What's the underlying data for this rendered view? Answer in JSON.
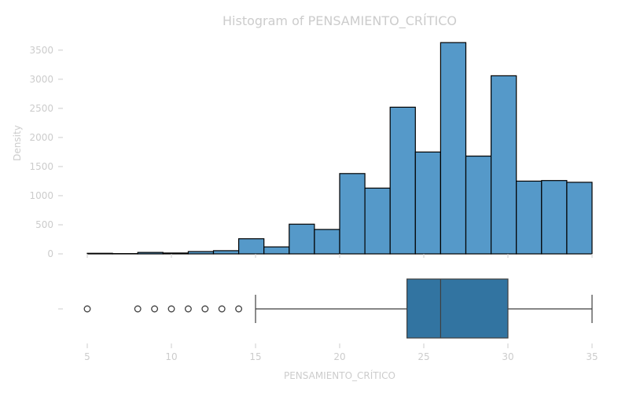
{
  "chart_data": {
    "type": "histogram+boxplot",
    "title": "Histogram of PENSAMIENTO_CRÍTICO",
    "xlabel": "PENSAMIENTO_CRÍTICO",
    "ylabel": "Density",
    "xlim": [
      4.5,
      35.5
    ],
    "ylim": [
      0,
      3700
    ],
    "xticks": [
      5,
      10,
      15,
      20,
      25,
      30,
      35
    ],
    "yticks": [
      0,
      500,
      1000,
      1500,
      2000,
      2500,
      3000,
      3500
    ],
    "grid": false,
    "histogram": {
      "bin_start": 5,
      "bin_width": 1.5,
      "values": [
        10,
        5,
        25,
        15,
        40,
        55,
        260,
        120,
        510,
        420,
        1380,
        1130,
        2520,
        1750,
        3630,
        1680,
        3060,
        1250,
        1260,
        1230
      ],
      "fill_color": "#5599c9",
      "edge_color": "#000000"
    },
    "boxplot": {
      "whisker_low": 15,
      "q1": 24,
      "median": 26,
      "q3": 30,
      "whisker_high": 35,
      "outliers": [
        5,
        8,
        9,
        10,
        11,
        12,
        13,
        14
      ],
      "box_color": "#3274a1",
      "line_color": "#3f3f3f"
    },
    "text_color": "#cccccc"
  }
}
